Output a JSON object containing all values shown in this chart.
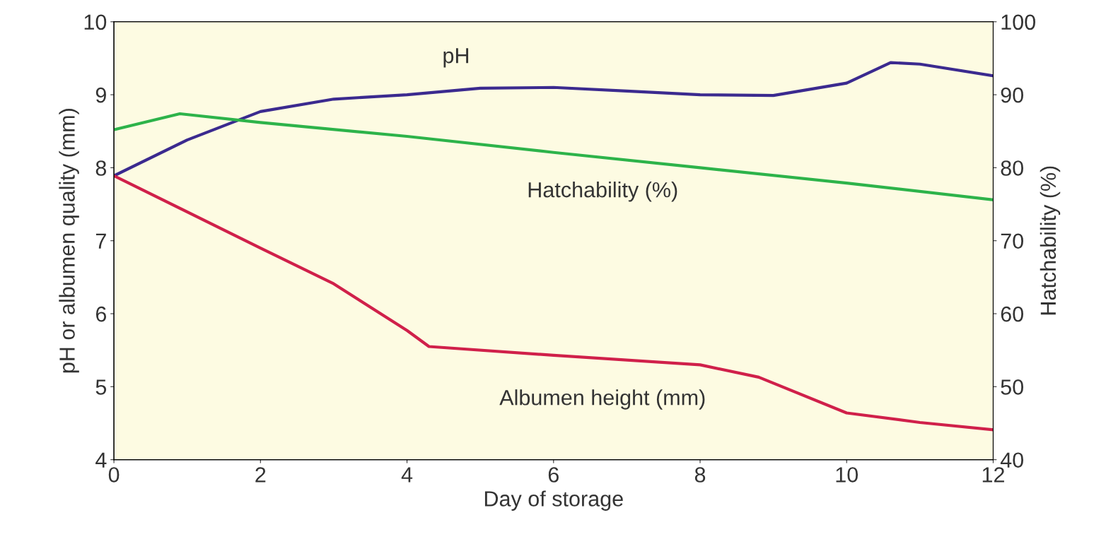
{
  "chart_data": {
    "type": "line",
    "xlabel": "Day of storage",
    "ylabel": "pH or albumen quality (mm)",
    "y2label": "Hatchability (%)",
    "xlim": [
      0,
      12
    ],
    "xticks": [
      0,
      2,
      4,
      6,
      8,
      10,
      12
    ],
    "ylim": [
      4,
      10
    ],
    "yticks": [
      4,
      5,
      6,
      7,
      8,
      9,
      10
    ],
    "y2lim": [
      40,
      100
    ],
    "y2ticks": [
      40,
      50,
      60,
      70,
      80,
      90,
      100
    ],
    "series": [
      {
        "name": "pH",
        "color": "#3b2a8f",
        "x": [
          0,
          1,
          2,
          3,
          4,
          5,
          6,
          7,
          8,
          9,
          10,
          10.6,
          11,
          12
        ],
        "values": [
          7.89,
          8.38,
          8.77,
          8.94,
          9.0,
          9.09,
          9.1,
          9.05,
          9.0,
          8.99,
          9.16,
          9.44,
          9.42,
          9.26
        ]
      },
      {
        "name": "Hatchability (%)",
        "color": "#2db34a",
        "axis": "y2",
        "x": [
          0,
          0.9,
          2,
          4,
          6,
          8,
          10,
          12
        ],
        "values": [
          85.2,
          87.4,
          86.2,
          84.3,
          82.1,
          80.0,
          77.9,
          75.6
        ]
      },
      {
        "name": "Albumen height (mm)",
        "color": "#d0204a",
        "x": [
          0,
          2,
          3,
          4,
          4.3,
          6,
          8,
          8.8,
          10,
          11,
          12
        ],
        "values": [
          7.89,
          6.9,
          6.41,
          5.77,
          5.55,
          5.43,
          5.3,
          5.13,
          4.64,
          4.51,
          4.41
        ]
      }
    ],
    "grid": false,
    "legend": false
  }
}
